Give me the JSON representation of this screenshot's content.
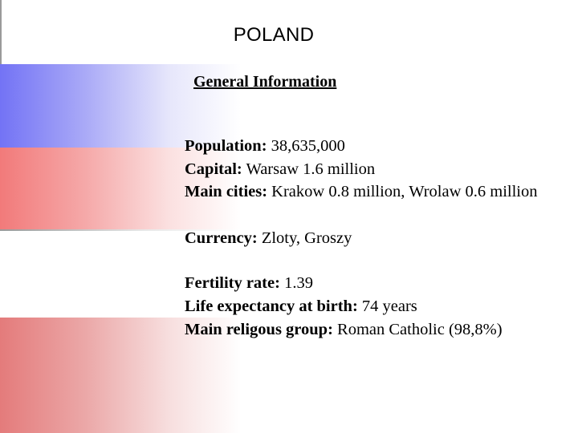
{
  "title": "POLAND",
  "subtitle": "General Information",
  "facts": {
    "population": {
      "label": "Population:",
      "value": " 38,635,000"
    },
    "capital": {
      "label": "Capital:",
      "value": " Warsaw 1.6 million"
    },
    "main_cities": {
      "label": "Main cities:",
      "value": " Krakow 0.8 million, Wrolaw 0.6 million"
    },
    "currency": {
      "label": "Currency:",
      "value": " Zloty, Groszy"
    },
    "fertility_rate": {
      "label": "Fertility rate:",
      "value": " 1.39"
    },
    "life_expectancy": {
      "label": "Life expectancy at birth:",
      "value": " 74 years"
    },
    "main_religious_group": {
      "label": "Main religous group:",
      "value": " Roman Catholic (98,8%)"
    }
  },
  "colors": {
    "band_blue": "#7373f5",
    "band_red": "#f27a7a",
    "band_lower": "#e47b7b"
  }
}
